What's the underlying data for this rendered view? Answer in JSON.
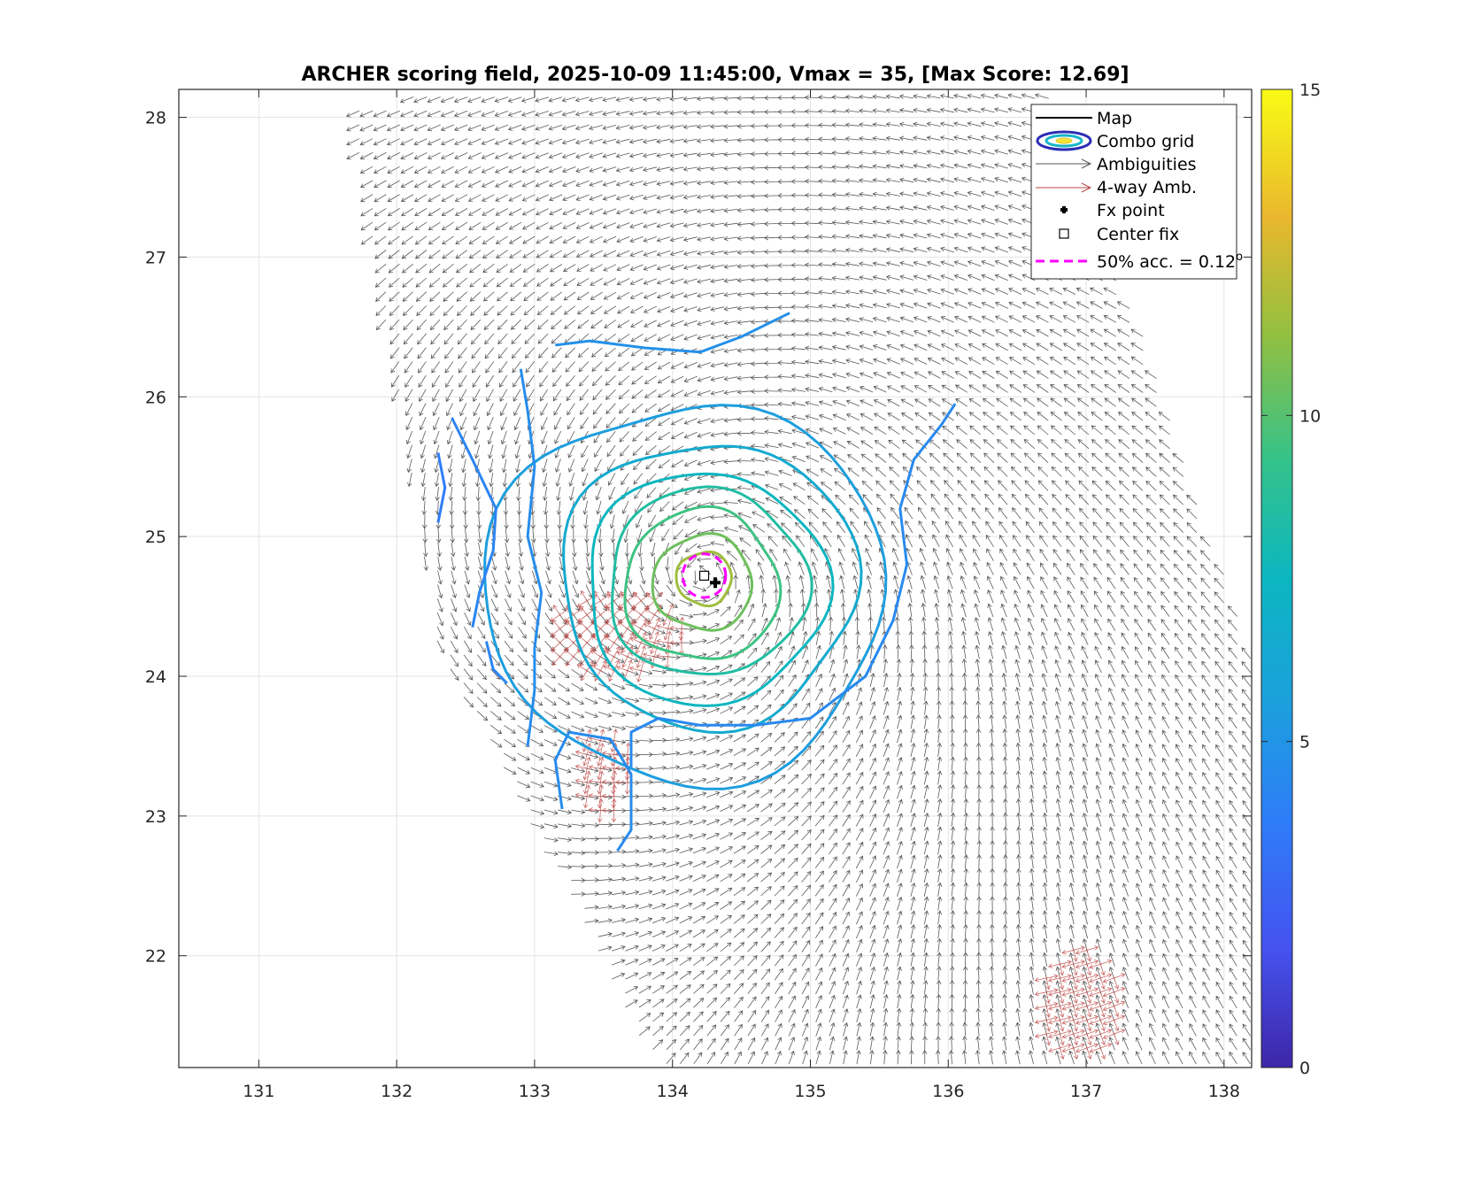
{
  "chart_data": {
    "type": "contour",
    "title": "ARCHER scoring field, 2025-10-09 11:45:00, Vmax = 35, [Max Score: 12.69]",
    "datetime": "2025-10-09 11:45:00",
    "vmax": 35,
    "max_score": 12.69,
    "xlabel": "",
    "ylabel": "",
    "xlim": [
      130.42,
      138.2
    ],
    "ylim": [
      21.2,
      28.2
    ],
    "xticks": [
      131,
      132,
      133,
      134,
      135,
      136,
      137,
      138
    ],
    "yticks": [
      22,
      23,
      24,
      25,
      26,
      27,
      28
    ],
    "grid": true,
    "colorbar": {
      "colormap": "parula",
      "min": 0,
      "max": 15,
      "ticks": [
        0,
        5,
        10,
        15
      ]
    },
    "legend": {
      "location": "top-right",
      "entries": [
        {
          "label": "Map",
          "marker": "line",
          "color": "#000000"
        },
        {
          "label": "Combo grid",
          "marker": "ellipse",
          "color": "#2b2db4"
        },
        {
          "label": "Ambiguities",
          "marker": "arrow",
          "color": "#555555"
        },
        {
          "label": "4-way Amb.",
          "marker": "arrow",
          "color": "#b84444"
        },
        {
          "label": "Fx point",
          "marker": "plus",
          "color": "#000000"
        },
        {
          "label": "Center fix",
          "marker": "square",
          "color": "#000000"
        },
        {
          "label": "50% acc. = 0.12",
          "superscript": "o",
          "marker": "dashed",
          "color": "#ff00ff"
        }
      ]
    },
    "center": {
      "lon": 134.23,
      "lat": 24.72
    },
    "fx_point": {
      "lon": 134.31,
      "lat": 24.67
    },
    "accuracy_circle_deg": 0.12,
    "contour_rings": [
      {
        "level": 11.5,
        "a": 0.2,
        "b": 0.19,
        "cx": 134.23,
        "cy": 24.7
      },
      {
        "level": 10.5,
        "a": 0.36,
        "b": 0.34,
        "cx": 134.22,
        "cy": 24.67
      },
      {
        "level": 9.5,
        "a": 0.56,
        "b": 0.54,
        "cx": 134.21,
        "cy": 24.65
      },
      {
        "level": 8.5,
        "a": 0.72,
        "b": 0.67,
        "cx": 134.25,
        "cy": 24.67
      },
      {
        "level": 7.5,
        "a": 0.87,
        "b": 0.83,
        "cx": 134.24,
        "cy": 24.63
      },
      {
        "level": 6.5,
        "a": 1.07,
        "b": 1.02,
        "cx": 134.26,
        "cy": 24.66
      },
      {
        "level": 5.5,
        "a": 1.45,
        "b": 1.35,
        "cx": 134.1,
        "cy": 24.6
      }
    ],
    "contour_lines": [
      {
        "level": 4.8,
        "points": [
          [
            133.15,
            26.37
          ],
          [
            133.4,
            26.4
          ],
          [
            133.8,
            26.35
          ],
          [
            134.2,
            26.32
          ],
          [
            134.5,
            26.43
          ],
          [
            134.85,
            26.6
          ]
        ]
      },
      {
        "level": 4.6,
        "points": [
          [
            132.9,
            26.2
          ],
          [
            132.95,
            25.9
          ],
          [
            133.0,
            25.5
          ],
          [
            132.95,
            25.0
          ],
          [
            133.05,
            24.6
          ],
          [
            133.0,
            24.2
          ],
          [
            133.0,
            23.9
          ],
          [
            132.95,
            23.5
          ]
        ]
      },
      {
        "level": 4.5,
        "points": [
          [
            133.2,
            23.05
          ],
          [
            133.15,
            23.4
          ],
          [
            133.25,
            23.6
          ],
          [
            133.55,
            23.55
          ],
          [
            133.7,
            23.3
          ],
          [
            133.7,
            22.9
          ],
          [
            133.6,
            22.75
          ]
        ]
      },
      {
        "level": 4.4,
        "points": [
          [
            136.05,
            25.95
          ],
          [
            135.95,
            25.8
          ],
          [
            135.75,
            25.55
          ],
          [
            135.65,
            25.2
          ],
          [
            135.7,
            24.8
          ],
          [
            135.6,
            24.4
          ],
          [
            135.4,
            24.0
          ],
          [
            135.0,
            23.7
          ],
          [
            134.6,
            23.65
          ],
          [
            134.2,
            23.65
          ],
          [
            133.9,
            23.7
          ],
          [
            133.7,
            23.6
          ],
          [
            133.7,
            23.35
          ]
        ]
      },
      {
        "level": 4.2,
        "points": [
          [
            132.4,
            25.85
          ],
          [
            132.55,
            25.55
          ],
          [
            132.72,
            25.2
          ],
          [
            132.7,
            24.9
          ],
          [
            132.6,
            24.6
          ],
          [
            132.55,
            24.35
          ]
        ]
      },
      {
        "level": 4.2,
        "points": [
          [
            132.65,
            24.25
          ],
          [
            132.7,
            24.05
          ],
          [
            132.8,
            23.95
          ]
        ]
      },
      {
        "level": 3.8,
        "points": [
          [
            132.3,
            25.6
          ],
          [
            132.35,
            25.35
          ],
          [
            132.3,
            25.1
          ]
        ]
      }
    ],
    "wind_field": {
      "swath_polygon": [
        [
          131.65,
          28.1
        ],
        [
          136.5,
          28.6
        ],
        [
          137.0,
          27.6
        ],
        [
          137.8,
          25.3
        ],
        [
          138.3,
          23.8
        ],
        [
          138.3,
          21.2
        ],
        [
          133.9,
          21.2
        ],
        [
          132.3,
          24.2
        ],
        [
          131.65,
          28.1
        ]
      ],
      "arrow_spacing_deg": 0.1,
      "four_way_regions": [
        {
          "cx": 133.6,
          "cy": 24.3,
          "rx": 0.5,
          "ry": 0.3
        },
        {
          "cx": 133.5,
          "cy": 23.3,
          "rx": 0.2,
          "ry": 0.3
        },
        {
          "cx": 136.95,
          "cy": 21.65,
          "rx": 0.3,
          "ry": 0.4
        }
      ]
    }
  }
}
